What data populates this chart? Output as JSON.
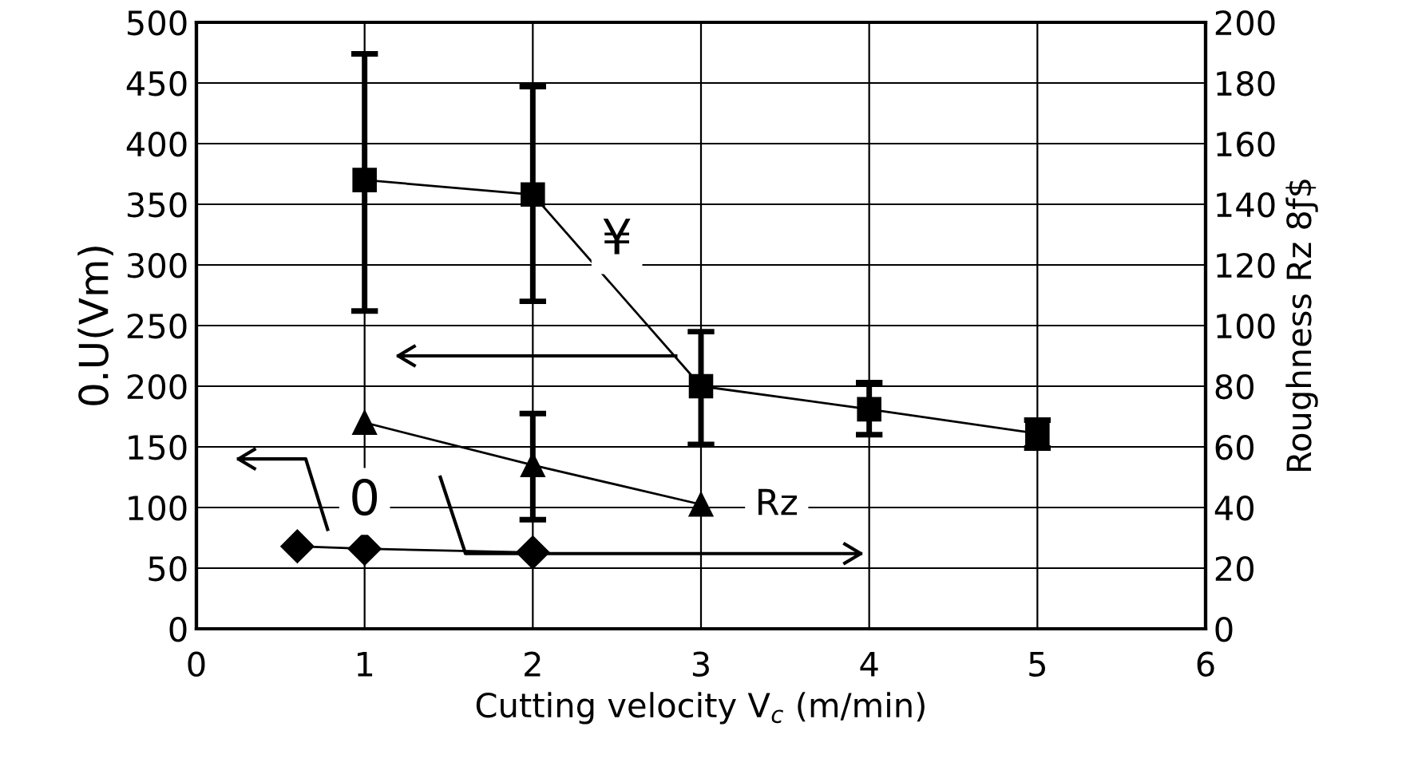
{
  "chart_data": {
    "type": "line",
    "xlabel": "Cutting velocity V$_{c}$ (m/min)",
    "ylabel": "0.U(Vm)",
    "y2label": "Roughness Rz 8ƒ$",
    "xlim": [
      0,
      6
    ],
    "xticks": [
      0,
      1,
      2,
      3,
      4,
      5,
      6
    ],
    "ylim": [
      0,
      500
    ],
    "yticks": [
      0,
      50,
      100,
      150,
      200,
      250,
      300,
      350,
      400,
      450,
      500
    ],
    "y2lim": [
      0,
      200
    ],
    "y2ticks": [
      0,
      20,
      40,
      60,
      80,
      100,
      120,
      140,
      160,
      180,
      200
    ],
    "grid": true,
    "series": [
      {
        "color": "#000000",
        "marker": "square",
        "x": [
          1,
          2,
          3,
          4,
          5
        ],
        "values": [
          370,
          358,
          200,
          181,
          161
        ],
        "errors": [
          [
            262,
            474
          ],
          [
            270,
            447
          ],
          [
            152,
            245
          ],
          [
            160,
            203
          ],
          [
            149,
            172
          ]
        ]
      },
      {
        "color": "#000000",
        "marker": "triangle",
        "axis": "y2",
        "x": [
          1,
          2,
          3
        ],
        "values": [
          68,
          54,
          41
        ],
        "errors": [
          null,
          [
            36,
            71
          ],
          null
        ]
      },
      {
        "color": "#000000",
        "marker": "diamond",
        "x": [
          0.6,
          1,
          2
        ],
        "values": [
          68,
          66,
          63
        ]
      }
    ],
    "annotations": [
      {
        "text": "¥",
        "x": 2.5,
        "y": 320
      },
      {
        "text": "0",
        "x": 1.0,
        "y": 105
      },
      {
        "text": "Rz",
        "x": 3.45,
        "y": 102
      }
    ]
  }
}
